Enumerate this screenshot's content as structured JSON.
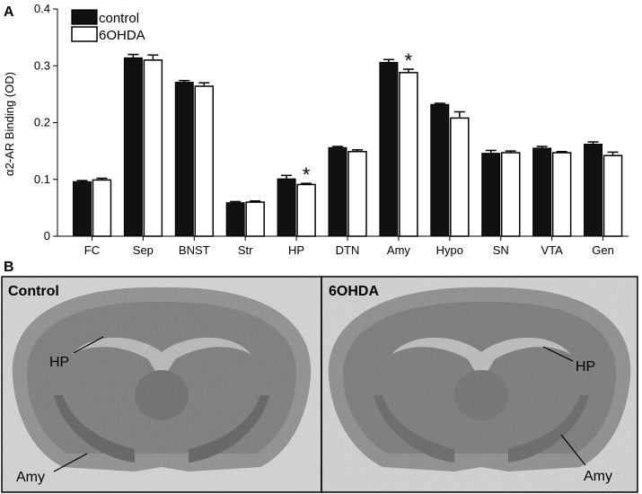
{
  "figure": {
    "panel_a_letter": "A",
    "panel_b_letter": "B"
  },
  "chart_data": {
    "type": "bar",
    "ylabel": "α2-AR Binding (OD)",
    "xlabel": "",
    "ylim": [
      0,
      0.4
    ],
    "yticks": [
      0,
      0.1,
      0.2,
      0.3,
      0.4
    ],
    "ytick_labels": [
      "0",
      "0.1",
      "0.2",
      "0.3",
      "0.4"
    ],
    "categories": [
      "FC",
      "Sep",
      "BNST",
      "Str",
      "HP",
      "DTN",
      "Amy",
      "Hypo",
      "SN",
      "VTA",
      "Gen"
    ],
    "series": [
      {
        "name": "control",
        "color": "#111111",
        "values": [
          0.096,
          0.314,
          0.271,
          0.059,
          0.101,
          0.156,
          0.306,
          0.232,
          0.146,
          0.155,
          0.162
        ],
        "errors": [
          0.002,
          0.006,
          0.003,
          0.002,
          0.006,
          0.002,
          0.005,
          0.002,
          0.005,
          0.003,
          0.004
        ]
      },
      {
        "name": "6OHDA",
        "color": "#ffffff",
        "values": [
          0.099,
          0.31,
          0.264,
          0.06,
          0.091,
          0.149,
          0.288,
          0.208,
          0.147,
          0.147,
          0.142
        ],
        "errors": [
          0.003,
          0.009,
          0.006,
          0.002,
          0.002,
          0.003,
          0.006,
          0.011,
          0.003,
          0.002,
          0.006
        ]
      }
    ],
    "significance": [
      {
        "category": "HP",
        "series": "6OHDA",
        "mark": "*"
      },
      {
        "category": "Amy",
        "series": "6OHDA",
        "mark": "*"
      }
    ],
    "legend_position": "top-left"
  },
  "panel_b": {
    "left": {
      "title": "Control",
      "labels": [
        "HP",
        "Amy"
      ]
    },
    "right": {
      "title": "6OHDA",
      "labels": [
        "HP",
        "Amy"
      ]
    }
  }
}
